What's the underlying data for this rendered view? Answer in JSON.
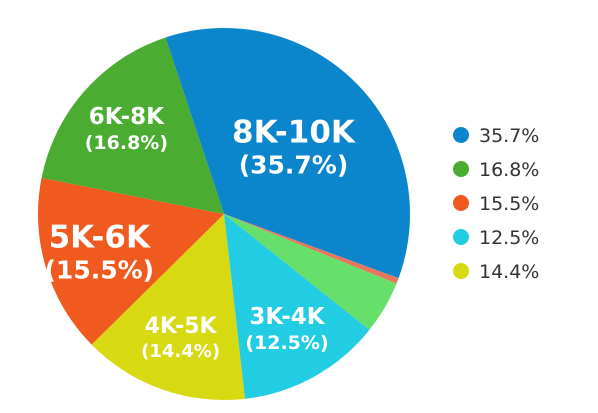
{
  "chart_data": {
    "type": "pie",
    "title": "",
    "slices": [
      {
        "label": "8K-10K",
        "percent_label": "(35.7%)",
        "value": 35.7,
        "color": "#0b85cc"
      },
      {
        "label": "",
        "percent_label": "",
        "value": 0.5,
        "color": "#e8765f"
      },
      {
        "label": "",
        "percent_label": "",
        "value": 4.6,
        "color": "#66e06a"
      },
      {
        "label": "3K-4K",
        "percent_label": "(12.5%)",
        "value": 12.5,
        "color": "#22cde3"
      },
      {
        "label": "4K-5K",
        "percent_label": "(14.4%)",
        "value": 14.4,
        "color": "#d7d911"
      },
      {
        "label": "5K-6K",
        "percent_label": "(15.5%)",
        "value": 15.5,
        "color": "#f15a1e"
      },
      {
        "label": "6K-8K",
        "percent_label": "(16.8%)",
        "value": 16.8,
        "color": "#4aad32"
      }
    ],
    "legend": {
      "position": "right",
      "entries": [
        {
          "text": "35.7%",
          "color": "#0b85cc"
        },
        {
          "text": "16.8%",
          "color": "#4aad32"
        },
        {
          "text": "15.5%",
          "color": "#f15a1e"
        },
        {
          "text": "12.5%",
          "color": "#22cde3"
        },
        {
          "text": "14.4%",
          "color": "#d7d911"
        }
      ]
    }
  }
}
